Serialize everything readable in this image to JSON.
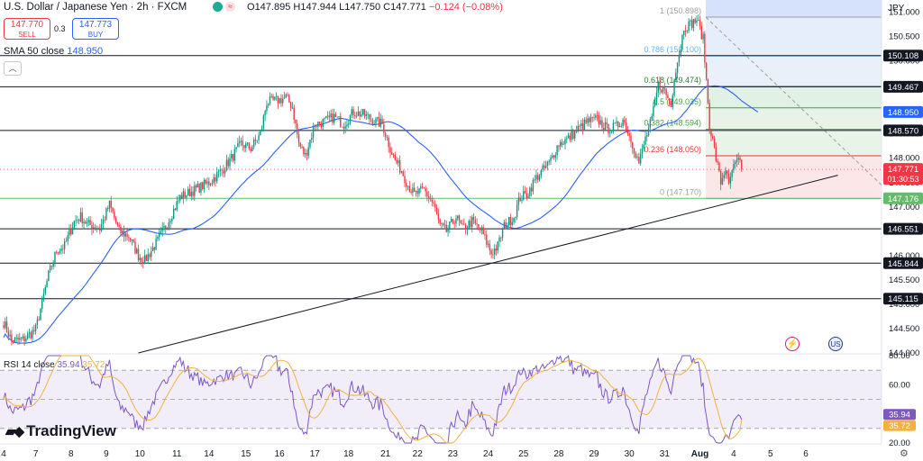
{
  "header": {
    "title": "U.S. Dollar / Japanese Yen · 2h · FXCM",
    "open_label": "O",
    "open": "147.895",
    "high_label": "H",
    "high": "147.944",
    "low_label": "L",
    "low": "147.750",
    "close_label": "C",
    "close": "147.771",
    "change": "−0.124 (−0.08%)"
  },
  "trade": {
    "sell_price": "147.770",
    "sell_label": "SELL",
    "spread": "0.3",
    "buy_price": "147.773",
    "buy_label": "BUY"
  },
  "indicators": {
    "sma_label": "SMA 50 close",
    "sma_value": "148.950",
    "rsi_label": "RSI 14 close",
    "rsi_value": "35.94",
    "rsi_ma_value": "35.72"
  },
  "currency_label": "JPY",
  "logo_text": "TradingView",
  "event_icons": [
    "lightning-event-icon",
    "us-flag-event-icon"
  ],
  "colors": {
    "up": "#089981",
    "down": "#f23645",
    "sma": "#2962ff",
    "rsi": "#7e57c2",
    "rsi_ma": "#f5b041"
  },
  "chart_data": [
    {
      "type": "candlestick",
      "symbol": "USDJPY",
      "interval": "2h",
      "ylim": [
        144.0,
        151.25
      ],
      "y_ticks": [
        "151.000",
        "150.500",
        "150.000",
        "149.500",
        "149.000",
        "148.500",
        "148.000",
        "147.500",
        "147.000",
        "146.500",
        "146.000",
        "145.500",
        "145.000",
        "144.500",
        "144.000"
      ],
      "x_ticks": [
        "4",
        "7",
        "8",
        "9",
        "10",
        "11",
        "14",
        "15",
        "16",
        "17",
        "18",
        "21",
        "22",
        "23",
        "24",
        "25",
        "28",
        "29",
        "30",
        "31",
        "Aug",
        "4",
        "5",
        "6"
      ],
      "x_tick_bars": [
        0,
        20,
        42,
        64,
        85,
        108,
        128,
        151,
        172,
        194,
        215,
        238,
        258,
        280,
        302,
        324,
        346,
        368,
        390,
        412,
        434,
        455,
        478,
        500
      ],
      "price_anchors": [
        [
          0,
          144.63
        ],
        [
          5,
          144.25
        ],
        [
          12,
          144.27
        ],
        [
          20,
          144.48
        ],
        [
          23,
          144.9
        ],
        [
          28,
          145.6
        ],
        [
          33,
          146.1
        ],
        [
          38,
          146.2
        ],
        [
          44,
          146.7
        ],
        [
          48,
          146.8
        ],
        [
          52,
          146.65
        ],
        [
          60,
          146.55
        ],
        [
          66,
          147.05
        ],
        [
          72,
          146.5
        ],
        [
          78,
          146.4
        ],
        [
          84,
          146.0
        ],
        [
          88,
          145.9
        ],
        [
          96,
          146.3
        ],
        [
          104,
          146.8
        ],
        [
          110,
          147.2
        ],
        [
          116,
          147.3
        ],
        [
          122,
          147.4
        ],
        [
          128,
          147.5
        ],
        [
          136,
          147.75
        ],
        [
          142,
          148.0
        ],
        [
          148,
          148.3
        ],
        [
          154,
          148.2
        ],
        [
          160,
          148.5
        ],
        [
          164,
          149.15
        ],
        [
          172,
          149.2
        ],
        [
          176,
          149.25
        ],
        [
          180,
          149.05
        ],
        [
          184,
          148.3
        ],
        [
          188,
          148.05
        ],
        [
          194,
          148.7
        ],
        [
          200,
          148.75
        ],
        [
          206,
          148.85
        ],
        [
          212,
          148.7
        ],
        [
          218,
          148.95
        ],
        [
          224,
          148.9
        ],
        [
          232,
          148.75
        ],
        [
          236,
          148.7
        ],
        [
          240,
          148.3
        ],
        [
          244,
          147.95
        ],
        [
          248,
          147.75
        ],
        [
          252,
          147.45
        ],
        [
          256,
          147.25
        ],
        [
          262,
          147.35
        ],
        [
          268,
          147.05
        ],
        [
          272,
          146.6
        ],
        [
          276,
          146.5
        ],
        [
          282,
          146.8
        ],
        [
          286,
          146.55
        ],
        [
          292,
          146.7
        ],
        [
          298,
          146.5
        ],
        [
          304,
          146.05
        ],
        [
          308,
          146.2
        ],
        [
          312,
          146.6
        ],
        [
          318,
          146.8
        ],
        [
          322,
          147.2
        ],
        [
          326,
          147.25
        ],
        [
          332,
          147.6
        ],
        [
          340,
          147.9
        ],
        [
          346,
          148.3
        ],
        [
          352,
          148.4
        ],
        [
          358,
          148.6
        ],
        [
          364,
          148.75
        ],
        [
          370,
          148.8
        ],
        [
          376,
          148.6
        ],
        [
          382,
          148.65
        ],
        [
          386,
          148.8
        ],
        [
          392,
          148.3
        ],
        [
          396,
          147.9
        ],
        [
          400,
          148.4
        ],
        [
          404,
          148.8
        ],
        [
          408,
          149.5
        ],
        [
          412,
          149.4
        ],
        [
          416,
          149.05
        ],
        [
          418,
          149.7
        ],
        [
          422,
          150.3
        ],
        [
          424,
          150.7
        ],
        [
          428,
          150.75
        ],
        [
          432,
          150.85
        ],
        [
          436,
          150.45
        ],
        [
          438,
          149.6
        ],
        [
          440,
          148.7
        ],
        [
          444,
          148.0
        ],
        [
          447,
          147.5
        ],
        [
          450,
          147.8
        ],
        [
          452,
          147.4
        ],
        [
          454,
          147.75
        ],
        [
          458,
          147.95
        ],
        [
          460,
          147.77
        ]
      ],
      "last_price": 147.771,
      "countdown": "01:30:53",
      "sma50_value_last": 148.95,
      "horizontal_levels": [
        "150.108",
        "149.467",
        "148.950",
        "148.570",
        "147.176",
        "146.551",
        "145.844",
        "145.115"
      ],
      "fibonacci": {
        "high": 150.898,
        "low": 147.17,
        "levels": [
          {
            "ratio": "1",
            "price": 150.898,
            "label": "1 (150.898)",
            "color": "#9e9e9e"
          },
          {
            "ratio": "0.786",
            "price": 150.1,
            "label": "0.786 (150.100)",
            "color": "#64b5f6"
          },
          {
            "ratio": "0.618",
            "price": 149.474,
            "label": "0.618 (149.474)",
            "color": "#2e7d32"
          },
          {
            "ratio": "0.5",
            "price": 149.035,
            "label": "0.5 (149.035)",
            "color": "#43a047"
          },
          {
            "ratio": "0.382",
            "price": 148.594,
            "label": "0.382 (148.594)",
            "color": "#43a047"
          },
          {
            "ratio": "0.236",
            "price": 148.05,
            "label": "0.236 (148.050)",
            "color": "#e53935"
          },
          {
            "ratio": "0",
            "price": 147.17,
            "label": "0 (147.170)",
            "color": "#9e9e9e"
          }
        ]
      },
      "trendline": {
        "from": [
          84,
          144.0
        ],
        "to": [
          520,
          147.65
        ]
      },
      "axis_badges": [
        {
          "text": "150.108",
          "type": "level"
        },
        {
          "text": "149.467",
          "type": "level"
        },
        {
          "text": "148.950",
          "type": "sma"
        },
        {
          "text": "148.570",
          "type": "level"
        },
        {
          "text": "147.771",
          "type": "last"
        },
        {
          "text": "147.176",
          "type": "fib"
        },
        {
          "text": "146.551",
          "type": "level"
        },
        {
          "text": "145.844",
          "type": "level"
        },
        {
          "text": "145.115",
          "type": "level"
        }
      ]
    },
    {
      "type": "line",
      "title": "RSI 14 close",
      "ylim": [
        20,
        80
      ],
      "y_ticks": [
        "80.00",
        "60.00",
        "40.00",
        "20.00"
      ],
      "bands": [
        70,
        50,
        30
      ],
      "rsi_last": 35.94,
      "rsi_ma_last": 35.72
    }
  ]
}
